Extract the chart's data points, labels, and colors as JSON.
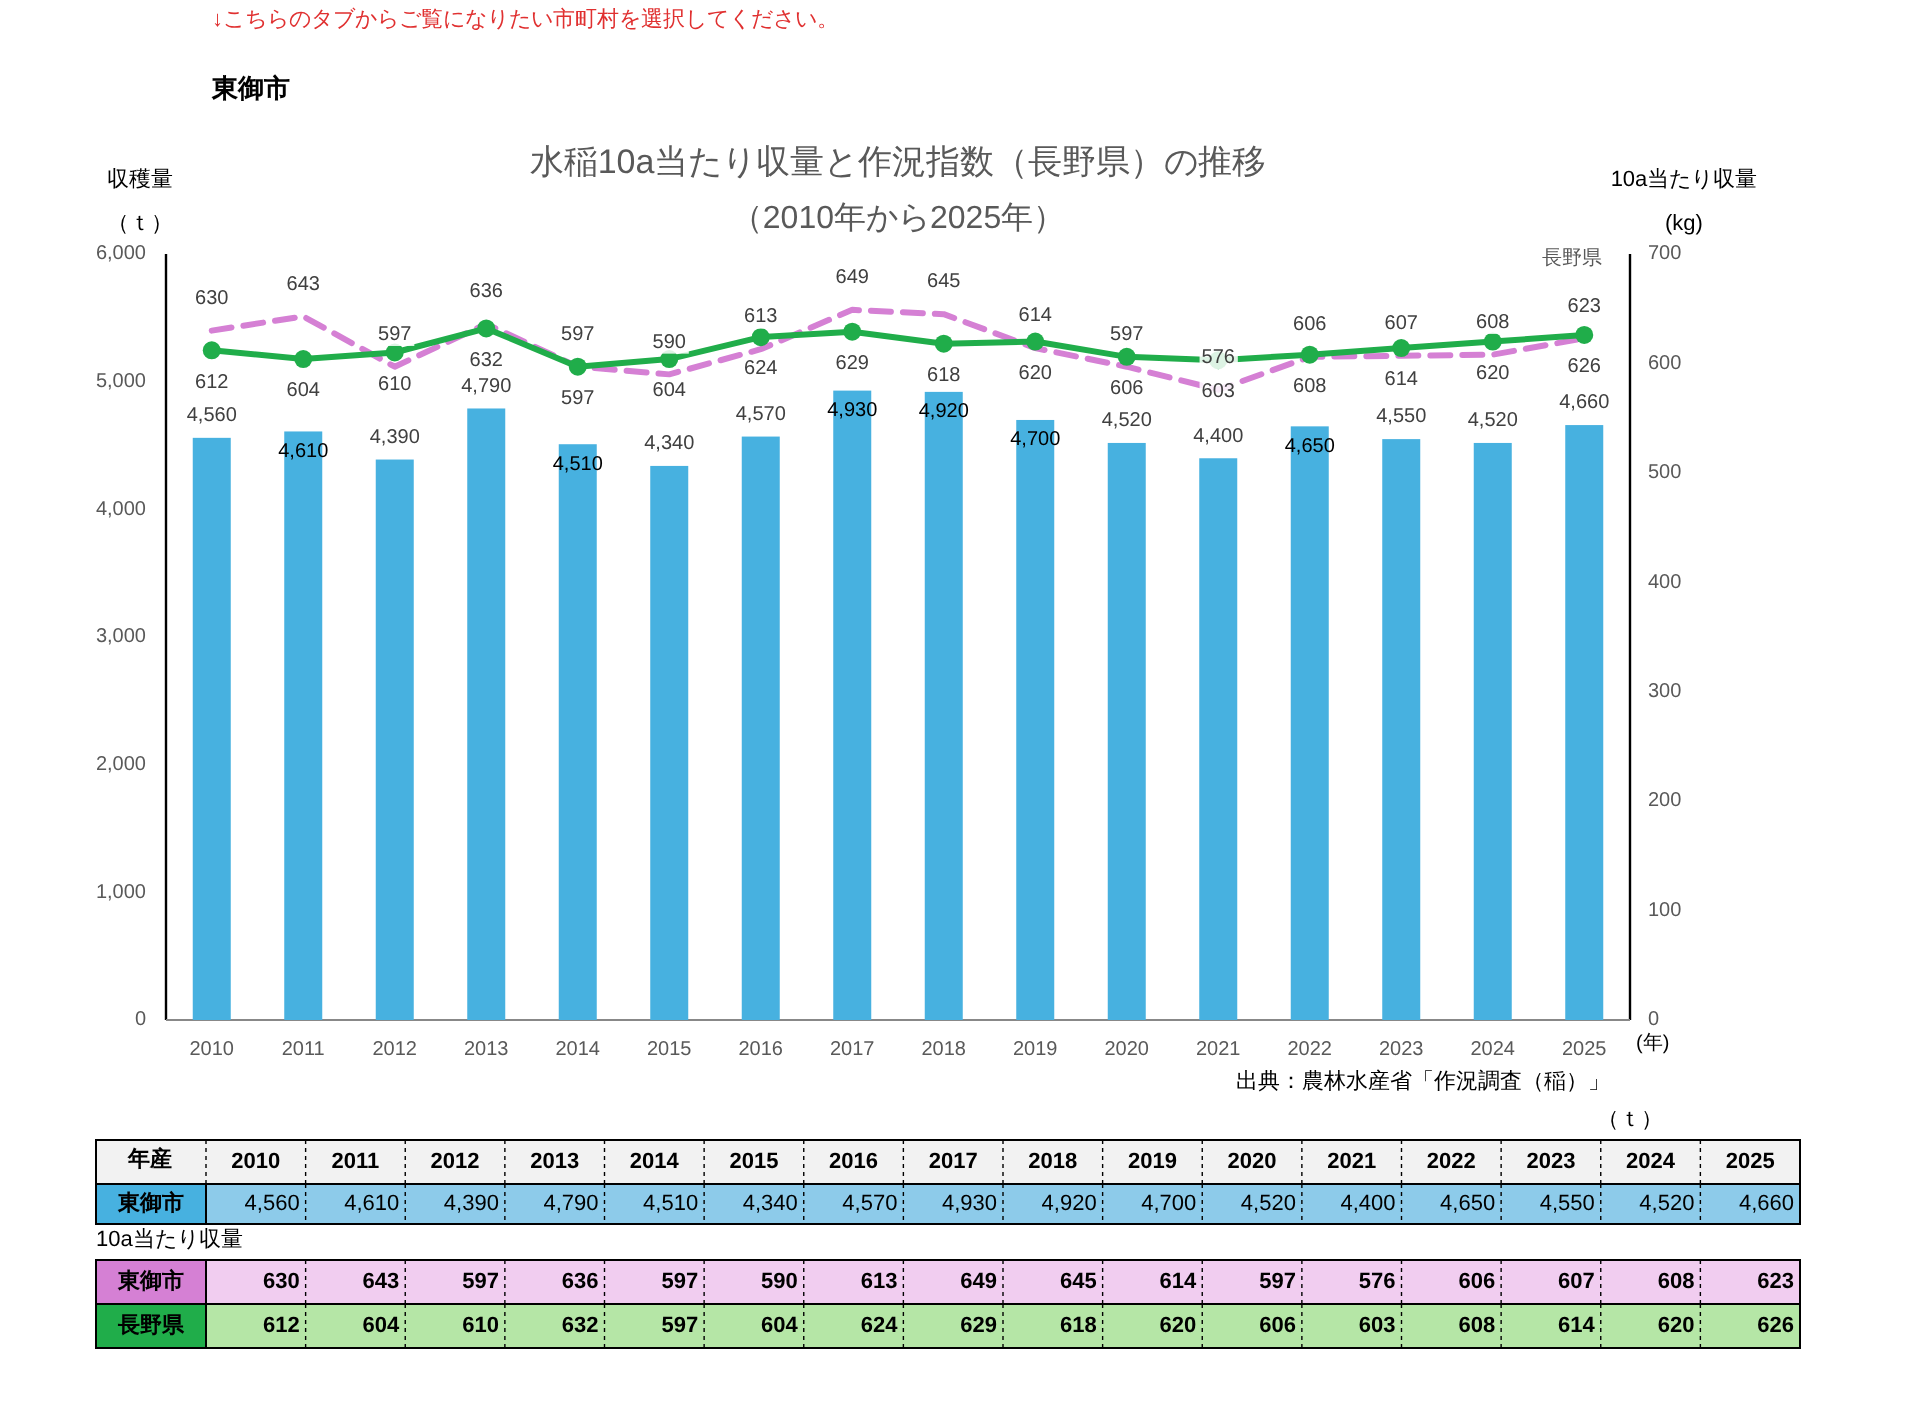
{
  "chart_data": {
    "type": "bar",
    "title": "水稲10a当たり収量と作況指数（長野県）の推移",
    "subtitle": "（2010年から2025年）",
    "ylabel": "収穫量（ｔ）",
    "y2label": "10a当たり収量(kg)",
    "xlabel": "(年)",
    "annotations": [
      "↓こちらのタブからご覧になりたい市町村を選択してください。",
      "東御市",
      "出典：農林水産省「作況調査（稲）」",
      "（ｔ）",
      "年産",
      "10a当たり収量"
    ],
    "categories": [
      "2010",
      "2011",
      "2012",
      "2013",
      "2014",
      "2015",
      "2016",
      "2017",
      "2018",
      "2019",
      "2020",
      "2021",
      "2022",
      "2023",
      "2024",
      "2025"
    ],
    "series": [
      {
        "name": "東御市",
        "color": "#47b1e0",
        "values": [
          4560,
          4610,
          4390,
          4790,
          4510,
          4340,
          4570,
          4930,
          4920,
          4700,
          4520,
          4400,
          4650,
          4550,
          4520,
          4660
        ],
        "value_labels": [
          "4,560",
          "4,610",
          "4,390",
          "4,790",
          "4,510",
          "4,340",
          "4,570",
          "4,930",
          "4,920",
          "4,700",
          "4,520",
          "4,400",
          "4,650",
          "4,550",
          "4,520",
          "4,660"
        ]
      },
      {
        "name": "東御市",
        "type": "line",
        "axis": "y2",
        "color": "#d580d4",
        "line_style": "dashed",
        "marker": "none",
        "values": [
          630,
          643,
          597,
          636,
          597,
          590,
          613,
          649,
          645,
          614,
          597,
          576,
          606,
          607,
          608,
          623
        ],
        "value_labels": [
          "630",
          "643",
          "597",
          "636",
          "597",
          "590",
          "613",
          "649",
          "645",
          "614",
          "597",
          "576",
          "606",
          "607",
          "608",
          "623"
        ]
      },
      {
        "name": "長野県",
        "type": "line",
        "axis": "y2",
        "color": "#20ad4a",
        "line_style": "solid",
        "marker": "circle",
        "values": [
          612,
          604,
          610,
          632,
          597,
          604,
          624,
          629,
          618,
          620,
          606,
          603,
          608,
          614,
          620,
          626
        ],
        "value_labels": [
          "612",
          "604",
          "610",
          "632",
          "597",
          "604",
          "624",
          "629",
          "618",
          "620",
          "606",
          "603",
          "608",
          "614",
          "620",
          "626"
        ]
      }
    ],
    "ylim": [
      0,
      6000
    ],
    "yticks": [
      0,
      {
        "value": 1000,
        "label": "1,000"
      },
      {
        "value": 2000,
        "label": "2,000"
      },
      {
        "value": 3000,
        "label": "3,000"
      },
      {
        "value": 4000,
        "label": "4,000"
      },
      {
        "value": 5000,
        "label": "5,000"
      },
      {
        "value": 6000,
        "label": "6,000"
      }
    ],
    "y2lim": [
      0,
      700
    ],
    "y2ticks": [
      0,
      100,
      200,
      300,
      400,
      500,
      600,
      700
    ],
    "grid": false,
    "legend": false
  }
}
